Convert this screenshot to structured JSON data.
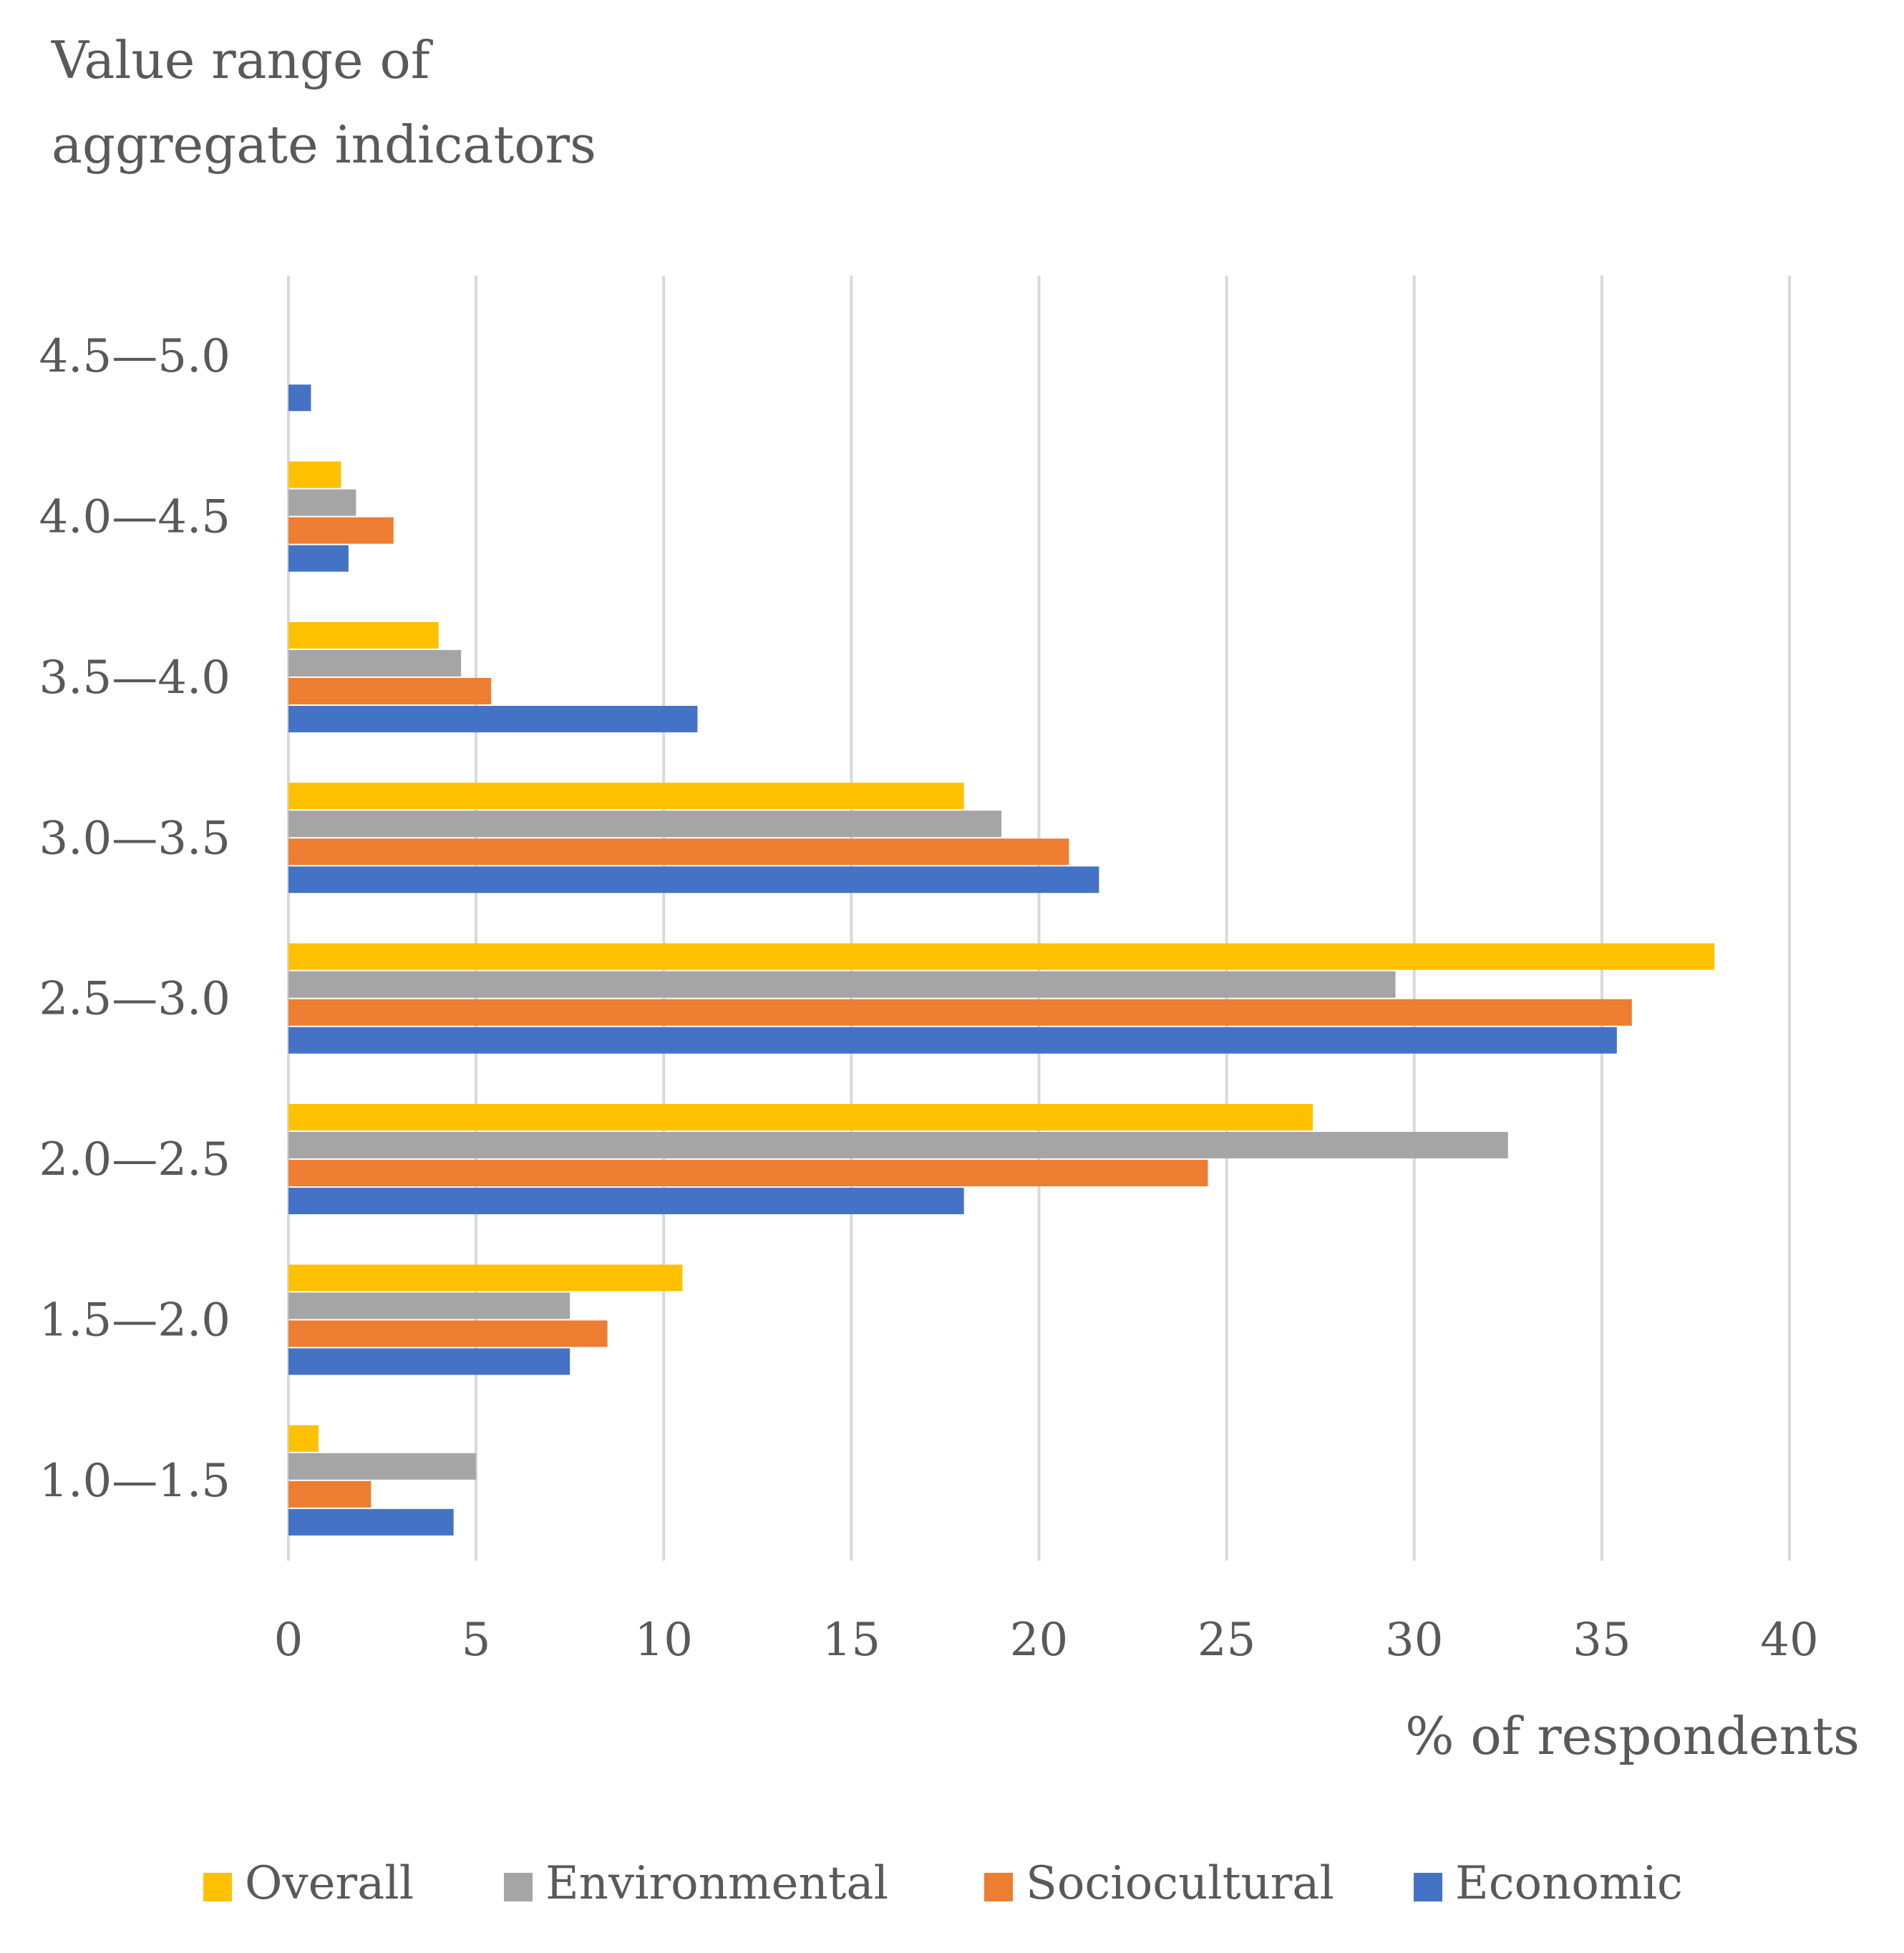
{
  "chart_data": {
    "type": "bar",
    "orientation": "horizontal",
    "title_lines": [
      "Value range of",
      "aggregate indicators"
    ],
    "xlabel": "% of respondents",
    "xlim": [
      0,
      40
    ],
    "xticks": [
      0,
      5,
      10,
      15,
      20,
      25,
      30,
      35,
      40
    ],
    "categories": [
      "4.5—5.0",
      "4.0—4.5",
      "3.5—4.0",
      "3.0—3.5",
      "2.5—3.0",
      "2.0—2.5",
      "1.5—2.0",
      "1.0—1.5"
    ],
    "series": [
      {
        "name": "Overall",
        "color": "#FFC000",
        "values": [
          0,
          1.4,
          4.0,
          18.0,
          38.0,
          27.3,
          10.5,
          0.8
        ]
      },
      {
        "name": "Environmental",
        "color": "#A5A5A5",
        "values": [
          0,
          1.8,
          4.6,
          19.0,
          29.5,
          32.5,
          7.5,
          5.0
        ]
      },
      {
        "name": "Sociocultural",
        "color": "#ED7D31",
        "values": [
          0,
          2.8,
          5.4,
          20.8,
          35.8,
          24.5,
          8.5,
          2.2
        ]
      },
      {
        "name": "Economic",
        "color": "#4472C4",
        "values": [
          0.6,
          1.6,
          10.9,
          21.6,
          35.4,
          18.0,
          7.5,
          4.4
        ]
      }
    ],
    "legend_order": [
      "Overall",
      "Environmental",
      "Sociocultural",
      "Economic"
    ],
    "legend_position": "bottom",
    "grid": true,
    "grid_color": "#D9D9D9"
  }
}
